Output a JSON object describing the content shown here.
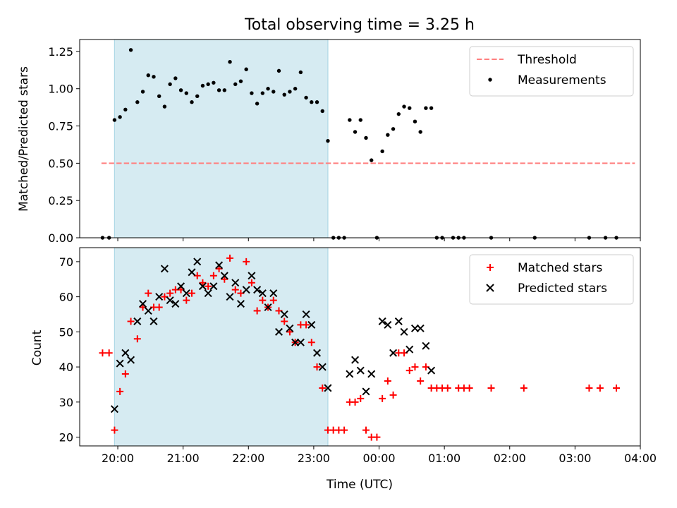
{
  "figure": {
    "title": "Total observing time = 3.25 h",
    "xlabel": "Time (UTC)"
  },
  "chart_data": [
    {
      "type": "scatter",
      "name": "ratio-panel",
      "ylabel": "Matched/Predicted stars",
      "xlim": [
        "19:25",
        "04:00"
      ],
      "ylim": [
        0,
        1.33
      ],
      "x_tick_labels": [],
      "y_ticks": [
        0.0,
        0.25,
        0.5,
        0.75,
        1.0,
        1.25
      ],
      "y_tick_labels": [
        "0.00",
        "0.25",
        "0.50",
        "0.75",
        "1.00",
        "1.25"
      ],
      "shaded_interval": [
        "19:57",
        "23:13"
      ],
      "shaded_color": "#add8e6",
      "legend_position": "upper-right",
      "threshold": {
        "name": "Threshold",
        "value": 0.5,
        "x_range": [
          "19:45",
          "03:55"
        ],
        "color": "#ff7f7f",
        "style": "dashed"
      },
      "series": [
        {
          "name": "Measurements",
          "marker": "dot",
          "color": "#000000",
          "points": [
            [
              "19:46",
              0.0
            ],
            [
              "19:52",
              0.0
            ],
            [
              "19:57",
              0.79
            ],
            [
              "20:02",
              0.81
            ],
            [
              "20:07",
              0.86
            ],
            [
              "20:12",
              1.26
            ],
            [
              "20:18",
              0.91
            ],
            [
              "20:23",
              0.98
            ],
            [
              "20:28",
              1.09
            ],
            [
              "20:33",
              1.08
            ],
            [
              "20:38",
              0.95
            ],
            [
              "20:43",
              0.88
            ],
            [
              "20:48",
              1.03
            ],
            [
              "20:53",
              1.07
            ],
            [
              "20:58",
              0.99
            ],
            [
              "21:03",
              0.97
            ],
            [
              "21:08",
              0.91
            ],
            [
              "21:13",
              0.95
            ],
            [
              "21:18",
              1.02
            ],
            [
              "21:23",
              1.03
            ],
            [
              "21:28",
              1.04
            ],
            [
              "21:33",
              0.99
            ],
            [
              "21:38",
              0.99
            ],
            [
              "21:43",
              1.18
            ],
            [
              "21:48",
              1.03
            ],
            [
              "21:53",
              1.05
            ],
            [
              "21:58",
              1.13
            ],
            [
              "22:03",
              0.97
            ],
            [
              "22:08",
              0.9
            ],
            [
              "22:13",
              0.97
            ],
            [
              "22:18",
              1.0
            ],
            [
              "22:23",
              0.98
            ],
            [
              "22:28",
              1.12
            ],
            [
              "22:33",
              0.96
            ],
            [
              "22:38",
              0.98
            ],
            [
              "22:43",
              1.0
            ],
            [
              "22:48",
              1.11
            ],
            [
              "22:53",
              0.94
            ],
            [
              "22:58",
              0.91
            ],
            [
              "23:03",
              0.91
            ],
            [
              "23:08",
              0.85
            ],
            [
              "23:13",
              0.65
            ],
            [
              "23:18",
              0.0
            ],
            [
              "23:23",
              0.0
            ],
            [
              "23:28",
              0.0
            ],
            [
              "23:33",
              0.79
            ],
            [
              "23:38",
              0.71
            ],
            [
              "23:43",
              0.79
            ],
            [
              "23:48",
              0.67
            ],
            [
              "23:53",
              0.52
            ],
            [
              "23:58",
              0.0
            ],
            [
              "00:03",
              0.58
            ],
            [
              "00:08",
              0.69
            ],
            [
              "00:13",
              0.73
            ],
            [
              "00:18",
              0.83
            ],
            [
              "00:23",
              0.88
            ],
            [
              "00:28",
              0.87
            ],
            [
              "00:33",
              0.78
            ],
            [
              "00:38",
              0.71
            ],
            [
              "00:43",
              0.87
            ],
            [
              "00:48",
              0.87
            ],
            [
              "00:53",
              0.0
            ],
            [
              "00:58",
              0.0
            ],
            [
              "01:08",
              0.0
            ],
            [
              "01:13",
              0.0
            ],
            [
              "01:18",
              0.0
            ],
            [
              "01:43",
              0.0
            ],
            [
              "02:23",
              0.0
            ],
            [
              "03:13",
              0.0
            ],
            [
              "03:28",
              0.0
            ],
            [
              "03:38",
              0.0
            ]
          ]
        }
      ]
    },
    {
      "type": "scatter",
      "name": "count-panel",
      "ylabel": "Count",
      "xlim": [
        "19:25",
        "04:00"
      ],
      "ylim": [
        17.5,
        74
      ],
      "x_ticks": [
        "20:00",
        "21:00",
        "22:00",
        "23:00",
        "00:00",
        "01:00",
        "02:00",
        "03:00",
        "04:00"
      ],
      "x_tick_labels": [
        "20:00",
        "21:00",
        "22:00",
        "23:00",
        "00:00",
        "01:00",
        "02:00",
        "03:00",
        "04:00"
      ],
      "y_ticks": [
        20,
        30,
        40,
        50,
        60,
        70
      ],
      "y_tick_labels": [
        "20",
        "30",
        "40",
        "50",
        "60",
        "70"
      ],
      "shaded_interval": [
        "19:57",
        "23:13"
      ],
      "shaded_color": "#add8e6",
      "legend_position": "upper-right",
      "series": [
        {
          "name": "Matched stars",
          "marker": "plus",
          "color": "#ff0000",
          "points": [
            [
              "19:46",
              44
            ],
            [
              "19:52",
              44
            ],
            [
              "19:57",
              22
            ],
            [
              "20:02",
              33
            ],
            [
              "20:07",
              38
            ],
            [
              "20:12",
              53
            ],
            [
              "20:18",
              48
            ],
            [
              "20:23",
              57
            ],
            [
              "20:28",
              61
            ],
            [
              "20:33",
              57
            ],
            [
              "20:38",
              57
            ],
            [
              "20:43",
              60
            ],
            [
              "20:48",
              61
            ],
            [
              "20:53",
              62
            ],
            [
              "20:58",
              62
            ],
            [
              "21:03",
              59
            ],
            [
              "21:08",
              61
            ],
            [
              "21:13",
              66
            ],
            [
              "21:18",
              64
            ],
            [
              "21:23",
              63
            ],
            [
              "21:28",
              66
            ],
            [
              "21:33",
              68
            ],
            [
              "21:38",
              65
            ],
            [
              "21:43",
              71
            ],
            [
              "21:48",
              62
            ],
            [
              "21:53",
              61
            ],
            [
              "21:58",
              70
            ],
            [
              "22:03",
              64
            ],
            [
              "22:08",
              56
            ],
            [
              "22:13",
              59
            ],
            [
              "22:18",
              57
            ],
            [
              "22:23",
              59
            ],
            [
              "22:28",
              56
            ],
            [
              "22:33",
              53
            ],
            [
              "22:38",
              50
            ],
            [
              "22:43",
              47
            ],
            [
              "22:48",
              52
            ],
            [
              "22:53",
              52
            ],
            [
              "22:58",
              47
            ],
            [
              "23:03",
              40
            ],
            [
              "23:08",
              34
            ],
            [
              "23:13",
              22
            ],
            [
              "23:18",
              22
            ],
            [
              "23:23",
              22
            ],
            [
              "23:28",
              22
            ],
            [
              "23:33",
              30
            ],
            [
              "23:38",
              30
            ],
            [
              "23:43",
              31
            ],
            [
              "23:48",
              22
            ],
            [
              "23:53",
              20
            ],
            [
              "23:58",
              20
            ],
            [
              "00:03",
              31
            ],
            [
              "00:08",
              36
            ],
            [
              "00:13",
              32
            ],
            [
              "00:18",
              44
            ],
            [
              "00:23",
              44
            ],
            [
              "00:28",
              39
            ],
            [
              "00:33",
              40
            ],
            [
              "00:38",
              36
            ],
            [
              "00:43",
              40
            ],
            [
              "00:48",
              34
            ],
            [
              "00:53",
              34
            ],
            [
              "00:58",
              34
            ],
            [
              "01:03",
              34
            ],
            [
              "01:13",
              34
            ],
            [
              "01:18",
              34
            ],
            [
              "01:23",
              34
            ],
            [
              "01:43",
              34
            ],
            [
              "02:13",
              34
            ],
            [
              "03:13",
              34
            ],
            [
              "03:23",
              34
            ],
            [
              "03:38",
              34
            ]
          ]
        },
        {
          "name": "Predicted stars",
          "marker": "x",
          "color": "#000000",
          "points": [
            [
              "19:57",
              28
            ],
            [
              "20:02",
              41
            ],
            [
              "20:07",
              44
            ],
            [
              "20:12",
              42
            ],
            [
              "20:18",
              53
            ],
            [
              "20:23",
              58
            ],
            [
              "20:28",
              56
            ],
            [
              "20:33",
              53
            ],
            [
              "20:38",
              60
            ],
            [
              "20:43",
              68
            ],
            [
              "20:48",
              59
            ],
            [
              "20:53",
              58
            ],
            [
              "20:58",
              63
            ],
            [
              "21:03",
              61
            ],
            [
              "21:08",
              67
            ],
            [
              "21:13",
              70
            ],
            [
              "21:18",
              63
            ],
            [
              "21:23",
              61
            ],
            [
              "21:28",
              63
            ],
            [
              "21:33",
              69
            ],
            [
              "21:38",
              66
            ],
            [
              "21:43",
              60
            ],
            [
              "21:48",
              64
            ],
            [
              "21:53",
              58
            ],
            [
              "21:58",
              62
            ],
            [
              "22:03",
              66
            ],
            [
              "22:08",
              62
            ],
            [
              "22:13",
              61
            ],
            [
              "22:18",
              57
            ],
            [
              "22:23",
              61
            ],
            [
              "22:28",
              50
            ],
            [
              "22:33",
              55
            ],
            [
              "22:38",
              51
            ],
            [
              "22:43",
              47
            ],
            [
              "22:48",
              47
            ],
            [
              "22:53",
              55
            ],
            [
              "22:58",
              52
            ],
            [
              "23:03",
              44
            ],
            [
              "23:08",
              40
            ],
            [
              "23:13",
              34
            ],
            [
              "23:33",
              38
            ],
            [
              "23:38",
              42
            ],
            [
              "23:43",
              39
            ],
            [
              "23:48",
              33
            ],
            [
              "23:53",
              38
            ],
            [
              "00:03",
              53
            ],
            [
              "00:08",
              52
            ],
            [
              "00:13",
              44
            ],
            [
              "00:18",
              53
            ],
            [
              "00:23",
              50
            ],
            [
              "00:28",
              45
            ],
            [
              "00:33",
              51
            ],
            [
              "00:38",
              51
            ],
            [
              "00:43",
              46
            ],
            [
              "00:48",
              39
            ]
          ]
        }
      ]
    }
  ]
}
